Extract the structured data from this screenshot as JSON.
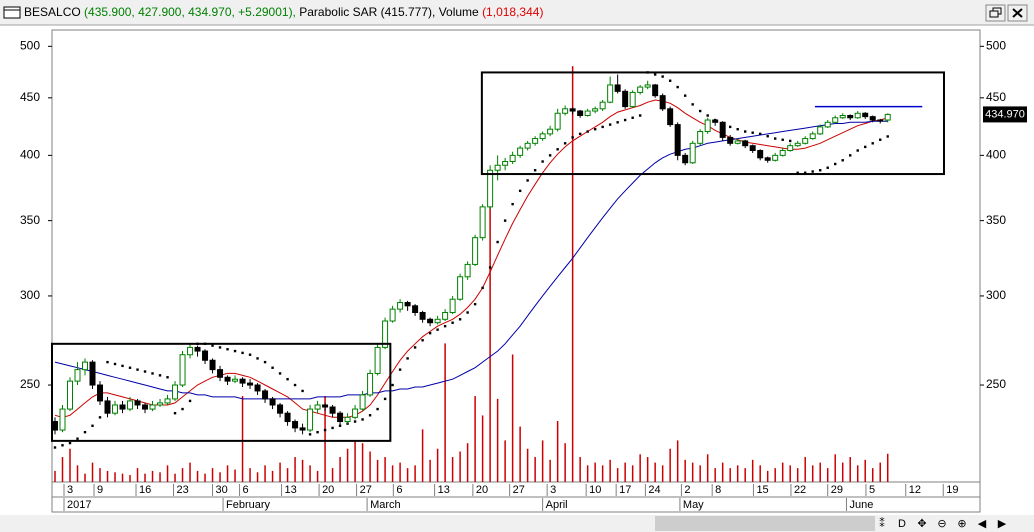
{
  "chart_data": {
    "type": "candlestick",
    "title": {
      "symbol": "BESALCO",
      "quote": "(435.900, 427.900, 434.970, +5.29001),",
      "indicator": "Parabolic SAR",
      "indicator_value": "(415.777),",
      "volume_label": "Volume",
      "volume_value": "(1,018,344)"
    },
    "log_scale": true,
    "ylim": [
      205,
      517
    ],
    "yticks": [
      500,
      450,
      400,
      350,
      300,
      250
    ],
    "xlim": [
      -0.4,
      123.3
    ],
    "xticks": [
      {
        "value": 1.2,
        "label": "3"
      },
      {
        "value": 5.2,
        "label": "9"
      },
      {
        "value": 10.8,
        "label": "16"
      },
      {
        "value": 15.8,
        "label": "23"
      },
      {
        "value": 21,
        "label": "30"
      },
      {
        "value": 24.6,
        "label": "6"
      },
      {
        "value": 30.2,
        "label": "13"
      },
      {
        "value": 35.2,
        "label": "20"
      },
      {
        "value": 40.2,
        "label": "27"
      },
      {
        "value": 45.1,
        "label": "6"
      },
      {
        "value": 50.6,
        "label": "13"
      },
      {
        "value": 55.7,
        "label": "20"
      },
      {
        "value": 60.6,
        "label": "27"
      },
      {
        "value": 65.6,
        "label": "3"
      },
      {
        "value": 70.8,
        "label": "10"
      },
      {
        "value": 74.8,
        "label": "17"
      },
      {
        "value": 78.7,
        "label": "24"
      },
      {
        "value": 83.5,
        "label": "2"
      },
      {
        "value": 87.6,
        "label": "8"
      },
      {
        "value": 93.1,
        "label": "15"
      },
      {
        "value": 98.1,
        "label": "22"
      },
      {
        "value": 103,
        "label": "29"
      },
      {
        "value": 108.1,
        "label": "5"
      },
      {
        "value": 113.4,
        "label": "12"
      },
      {
        "value": 118.4,
        "label": "19"
      }
    ],
    "month_ticks": [
      {
        "value": 1.2,
        "label": "2017"
      },
      {
        "value": 22.4,
        "label": "February"
      },
      {
        "value": 41.6,
        "label": "March"
      },
      {
        "value": 65,
        "label": "April"
      },
      {
        "value": 83.3,
        "label": "May"
      },
      {
        "value": 105.5,
        "label": "June"
      }
    ],
    "up_color": "#008000",
    "down_color": "#000000",
    "ohlc": [
      [
        232,
        234,
        226,
        228
      ],
      [
        228,
        240,
        227,
        238
      ],
      [
        238,
        254,
        237,
        252
      ],
      [
        252,
        262,
        250,
        258
      ],
      [
        258,
        264,
        255,
        262
      ],
      [
        262,
        263,
        248,
        250
      ],
      [
        250,
        252,
        240,
        242
      ],
      [
        242,
        244,
        234,
        236
      ],
      [
        236,
        242,
        235,
        240
      ],
      [
        240,
        242,
        236,
        238
      ],
      [
        238,
        244,
        237,
        242
      ],
      [
        242,
        243,
        238,
        240
      ],
      [
        240,
        241,
        236,
        238
      ],
      [
        238,
        242,
        237,
        240
      ],
      [
        240,
        243,
        239,
        241
      ],
      [
        241,
        245,
        240,
        243
      ],
      [
        243,
        252,
        242,
        250
      ],
      [
        250,
        268,
        249,
        266
      ],
      [
        266,
        272,
        264,
        270
      ],
      [
        270,
        271,
        265,
        268
      ],
      [
        268,
        269,
        261,
        263
      ],
      [
        263,
        264,
        256,
        258
      ],
      [
        258,
        260,
        252,
        254
      ],
      [
        254,
        255,
        250,
        252
      ],
      [
        252,
        255,
        251,
        253
      ],
      [
        253,
        254,
        249,
        251
      ],
      [
        251,
        253,
        248,
        250
      ],
      [
        250,
        251,
        245,
        247
      ],
      [
        247,
        248,
        241,
        243
      ],
      [
        243,
        244,
        238,
        240
      ],
      [
        240,
        241,
        234,
        236
      ],
      [
        236,
        237,
        230,
        232
      ],
      [
        232,
        233,
        227,
        229
      ],
      [
        229,
        231,
        226,
        228
      ],
      [
        228,
        240,
        227,
        238
      ],
      [
        238,
        242,
        236,
        240
      ],
      [
        240,
        241,
        237,
        239
      ],
      [
        239,
        240,
        234,
        236
      ],
      [
        236,
        237,
        230,
        232
      ],
      [
        232,
        236,
        231,
        234
      ],
      [
        234,
        240,
        233,
        238
      ],
      [
        238,
        247,
        237,
        245
      ],
      [
        245,
        258,
        244,
        256
      ],
      [
        256,
        272,
        255,
        270
      ],
      [
        270,
        287,
        269,
        285
      ],
      [
        285,
        294,
        284,
        292
      ],
      [
        292,
        298,
        290,
        296
      ],
      [
        296,
        297,
        291,
        294
      ],
      [
        294,
        295,
        288,
        290
      ],
      [
        290,
        291,
        284,
        286
      ],
      [
        286,
        287,
        282,
        284
      ],
      [
        284,
        288,
        283,
        286
      ],
      [
        286,
        292,
        285,
        290
      ],
      [
        290,
        300,
        289,
        298
      ],
      [
        298,
        314,
        297,
        312
      ],
      [
        312,
        322,
        310,
        320
      ],
      [
        320,
        340,
        319,
        338
      ],
      [
        338,
        362,
        336,
        360
      ],
      [
        360,
        392,
        358,
        388
      ],
      [
        388,
        400,
        380,
        392
      ],
      [
        392,
        398,
        388,
        395
      ],
      [
        395,
        403,
        393,
        400
      ],
      [
        400,
        408,
        398,
        406
      ],
      [
        406,
        412,
        404,
        410
      ],
      [
        410,
        416,
        408,
        414
      ],
      [
        414,
        420,
        412,
        418
      ],
      [
        418,
        425,
        416,
        422
      ],
      [
        422,
        440,
        420,
        436
      ],
      [
        436,
        443,
        434,
        440
      ],
      [
        440,
        441,
        435,
        438
      ],
      [
        438,
        439,
        432,
        434
      ],
      [
        434,
        440,
        433,
        438
      ],
      [
        438,
        442,
        436,
        440
      ],
      [
        440,
        448,
        438,
        446
      ],
      [
        446,
        470,
        445,
        462
      ],
      [
        462,
        472,
        454,
        456
      ],
      [
        456,
        458,
        440,
        442
      ],
      [
        442,
        457,
        441,
        455
      ],
      [
        455,
        462,
        453,
        460
      ],
      [
        460,
        466,
        458,
        462
      ],
      [
        462,
        463,
        450,
        452
      ],
      [
        452,
        454,
        438,
        440
      ],
      [
        440,
        442,
        424,
        426
      ],
      [
        426,
        428,
        396,
        400
      ],
      [
        400,
        402,
        392,
        394
      ],
      [
        394,
        412,
        393,
        410
      ],
      [
        410,
        422,
        408,
        420
      ],
      [
        420,
        432,
        418,
        430
      ],
      [
        430,
        431,
        425,
        428
      ],
      [
        428,
        429,
        412,
        415
      ],
      [
        415,
        417,
        408,
        410
      ],
      [
        410,
        414,
        409,
        412
      ],
      [
        412,
        413,
        406,
        408
      ],
      [
        408,
        409,
        402,
        404
      ],
      [
        404,
        405,
        396,
        398
      ],
      [
        398,
        399,
        394,
        396
      ],
      [
        396,
        402,
        395,
        400
      ],
      [
        400,
        406,
        399,
        404
      ],
      [
        404,
        410,
        403,
        408
      ],
      [
        408,
        412,
        407,
        410
      ],
      [
        410,
        416,
        409,
        414
      ],
      [
        414,
        420,
        413,
        418
      ],
      [
        418,
        426,
        417,
        424
      ],
      [
        424,
        430,
        423,
        428
      ],
      [
        428,
        434,
        427,
        432
      ],
      [
        432,
        436,
        431,
        434
      ],
      [
        434,
        435,
        430,
        432
      ],
      [
        432,
        438,
        431,
        436
      ],
      [
        436,
        437,
        431,
        433
      ],
      [
        433,
        434,
        428,
        430
      ],
      [
        430,
        431,
        427,
        429.68
      ],
      [
        430,
        435.9,
        427.9,
        434.97
      ]
    ],
    "last_price_label": "434.970",
    "ma_lines": [
      {
        "color": "#cc0000",
        "values": [
          235,
          234,
          235,
          238,
          241,
          244,
          246,
          246,
          245,
          244,
          243,
          242,
          241,
          240,
          240,
          240,
          241,
          244,
          247,
          250,
          252,
          254,
          255,
          256,
          256,
          255,
          254,
          252,
          250,
          248,
          246,
          244,
          241,
          238,
          237,
          236,
          235,
          234,
          234,
          234,
          235,
          237,
          240,
          245,
          251,
          257,
          263,
          268,
          272,
          276,
          279,
          282,
          284,
          286,
          289,
          293,
          298,
          305,
          315,
          326,
          337,
          348,
          358,
          368,
          377,
          386,
          394,
          401,
          407,
          412,
          416,
          420,
          424,
          428,
          433,
          437,
          439,
          441,
          443,
          446,
          448,
          447,
          445,
          441,
          436,
          432,
          428,
          425,
          421,
          418,
          415,
          413,
          411,
          410,
          409,
          408,
          407,
          406,
          405,
          405,
          406,
          408,
          410,
          413,
          416,
          419,
          422,
          425,
          427,
          429,
          430,
          432
        ]
      },
      {
        "color": "#0000aa",
        "values": [
          262,
          261,
          260,
          259,
          258,
          257,
          256,
          255,
          254,
          253,
          252,
          251,
          250,
          249,
          248,
          247,
          247,
          246,
          246,
          245,
          245,
          244,
          244,
          244,
          244,
          243,
          243,
          243,
          243,
          243,
          243,
          243,
          243,
          243,
          243,
          244,
          244,
          244,
          244,
          245,
          245,
          245,
          246,
          246,
          247,
          247,
          248,
          248,
          249,
          249,
          250,
          251,
          252,
          253,
          255,
          257,
          259,
          262,
          265,
          268,
          272,
          277,
          282,
          288,
          294,
          300,
          306,
          312,
          318,
          324,
          331,
          338,
          345,
          352,
          359,
          366,
          372,
          378,
          384,
          389,
          394,
          398,
          401,
          403,
          405,
          406,
          408,
          410,
          411,
          412,
          413,
          414,
          415,
          416,
          417,
          418,
          419,
          420,
          421,
          422,
          423,
          424,
          425,
          426,
          427,
          427,
          428,
          428,
          428,
          429,
          429,
          429
        ]
      }
    ],
    "sar": {
      "color": "#000000",
      "values": [
        220,
        221,
        222,
        224,
        227,
        230,
        234,
        262,
        261,
        260,
        259,
        258,
        257,
        256,
        255,
        254,
        236,
        238,
        242,
        272,
        272,
        271,
        270,
        269,
        268,
        267,
        266,
        264,
        262,
        259,
        256,
        253,
        250,
        247,
        226,
        227,
        228,
        229,
        230,
        231,
        232,
        233,
        235,
        238,
        243,
        250,
        258,
        264,
        270,
        274,
        278,
        280,
        282,
        284,
        286,
        290,
        295,
        305,
        318,
        335,
        350,
        362,
        372,
        380,
        388,
        395,
        400,
        405,
        410,
        415,
        418,
        420,
        422,
        424,
        426,
        428,
        430,
        432,
        434,
        474,
        472,
        470,
        466,
        460,
        452,
        444,
        438,
        434,
        430,
        427,
        424,
        422,
        420,
        419,
        418,
        416,
        414,
        413,
        412,
        386,
        386,
        387,
        388,
        390,
        393,
        396,
        400,
        404,
        407,
        410,
        413,
        415.777
      ]
    },
    "volume": {
      "color": "#cc0000",
      "values": [
        400000,
        900000,
        1200000,
        600000,
        300000,
        700000,
        500000,
        400000,
        350000,
        300000,
        250000,
        500000,
        300000,
        400000,
        350000,
        600000,
        300000,
        500000,
        700000,
        400000,
        300000,
        500000,
        350000,
        600000,
        450000,
        3100000,
        500000,
        350000,
        600000,
        400000,
        700000,
        500000,
        900000,
        800000,
        600000,
        400000,
        3100000,
        500000,
        900000,
        1200000,
        1500000,
        1400000,
        1100000,
        800000,
        900000,
        600000,
        700000,
        500000,
        600000,
        1900000,
        800000,
        1200000,
        5000000,
        900000,
        1100000,
        1400000,
        3100000,
        2400000,
        11000000,
        3000000,
        1500000,
        4600000,
        2000000,
        1200000,
        900000,
        1500000,
        800000,
        2200000,
        1400000,
        15000000,
        900000,
        600000,
        700000,
        600000,
        800000,
        500000,
        700000,
        600000,
        1000000,
        900000,
        700000,
        600000,
        1200000,
        1500000,
        800000,
        700000,
        600000,
        1000000,
        500000,
        700000,
        500000,
        600000,
        500000,
        800000,
        600000,
        400000,
        500000,
        700000,
        600000,
        500000,
        900000,
        600000,
        700000,
        500000,
        1000000,
        700000,
        900000,
        600000,
        800000,
        500000,
        700000,
        1018344
      ]
    },
    "boxes": [
      {
        "x": [
          -0.4,
          44.7
        ],
        "y": [
          223,
          272
        ]
      },
      {
        "x": [
          56.9,
          118.5
        ],
        "y": [
          385,
          474
        ]
      }
    ],
    "trendline": {
      "color": "#0000cc",
      "x": [
        101.3,
        115.6
      ],
      "y": 442
    },
    "toolbar": [
      "⁑",
      "D",
      "✥",
      "⊖",
      "⊕",
      "◀",
      "▶"
    ]
  }
}
